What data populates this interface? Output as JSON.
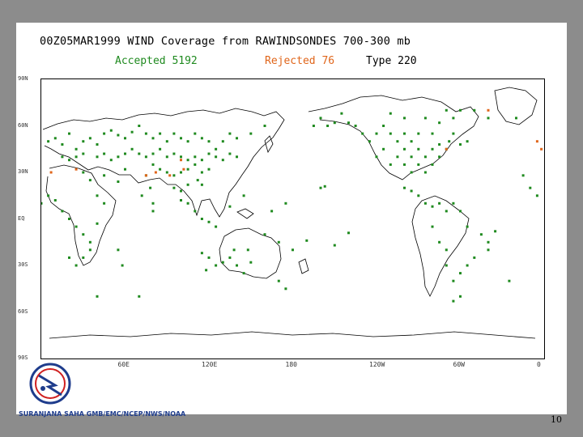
{
  "header": {
    "title": "00Z05MAR1999 WIND Coverage from RAWINDSONDES 700-300 mb",
    "accepted_label": "Accepted 5192",
    "rejected_label": "Rejected 76",
    "type_label": "Type 220"
  },
  "axes": {
    "lat_labels": [
      "90N",
      "60N",
      "30N",
      "EQ",
      "30S",
      "60S",
      "90S"
    ],
    "lon_labels": [
      "60E",
      "120E",
      "180",
      "120W",
      "60W",
      "0"
    ]
  },
  "credit": "SURANJANA SAHA GMB/EMC/NCEP/NWS/NOAA",
  "logo_text": "NATIONAL WEATHER SERVICE",
  "page_number": "10",
  "colors": {
    "accepted": "#1f8a1f",
    "rejected": "#e0651a",
    "background": "#8c8c8c"
  },
  "observations": {
    "accepted": [
      [
        5,
        50
      ],
      [
        10,
        52
      ],
      [
        15,
        48
      ],
      [
        20,
        55
      ],
      [
        25,
        45
      ],
      [
        30,
        50
      ],
      [
        35,
        52
      ],
      [
        40,
        48
      ],
      [
        45,
        55
      ],
      [
        50,
        57
      ],
      [
        55,
        54
      ],
      [
        60,
        52
      ],
      [
        65,
        56
      ],
      [
        70,
        60
      ],
      [
        75,
        55
      ],
      [
        80,
        52
      ],
      [
        85,
        55
      ],
      [
        90,
        50
      ],
      [
        95,
        55
      ],
      [
        100,
        52
      ],
      [
        105,
        50
      ],
      [
        110,
        55
      ],
      [
        115,
        52
      ],
      [
        120,
        50
      ],
      [
        125,
        45
      ],
      [
        130,
        50
      ],
      [
        135,
        55
      ],
      [
        140,
        52
      ],
      [
        150,
        55
      ],
      [
        160,
        60
      ],
      [
        15,
        40
      ],
      [
        20,
        38
      ],
      [
        25,
        40
      ],
      [
        30,
        42
      ],
      [
        40,
        40
      ],
      [
        45,
        42
      ],
      [
        50,
        38
      ],
      [
        55,
        40
      ],
      [
        60,
        42
      ],
      [
        65,
        45
      ],
      [
        70,
        42
      ],
      [
        75,
        40
      ],
      [
        80,
        42
      ],
      [
        85,
        45
      ],
      [
        90,
        40
      ],
      [
        95,
        42
      ],
      [
        100,
        40
      ],
      [
        105,
        38
      ],
      [
        110,
        40
      ],
      [
        115,
        38
      ],
      [
        120,
        42
      ],
      [
        125,
        40
      ],
      [
        130,
        38
      ],
      [
        135,
        42
      ],
      [
        140,
        40
      ],
      [
        80,
        35
      ],
      [
        85,
        32
      ],
      [
        90,
        30
      ],
      [
        95,
        28
      ],
      [
        100,
        30
      ],
      [
        105,
        32
      ],
      [
        110,
        35
      ],
      [
        115,
        30
      ],
      [
        120,
        32
      ],
      [
        112,
        25
      ],
      [
        115,
        22
      ],
      [
        105,
        22
      ],
      [
        100,
        18
      ],
      [
        95,
        20
      ],
      [
        100,
        12
      ],
      [
        105,
        10
      ],
      [
        110,
        5
      ],
      [
        115,
        0
      ],
      [
        120,
        -2
      ],
      [
        125,
        -5
      ],
      [
        30,
        30
      ],
      [
        35,
        25
      ],
      [
        45,
        28
      ],
      [
        55,
        24
      ],
      [
        60,
        32
      ],
      [
        75,
        28
      ],
      [
        78,
        20
      ],
      [
        72,
        15
      ],
      [
        80,
        10
      ],
      [
        80,
        5
      ],
      [
        115,
        -22
      ],
      [
        120,
        -25
      ],
      [
        125,
        -30
      ],
      [
        130,
        -28
      ],
      [
        135,
        -25
      ],
      [
        140,
        -30
      ],
      [
        145,
        -35
      ],
      [
        150,
        -28
      ],
      [
        138,
        -20
      ],
      [
        148,
        -20
      ],
      [
        118,
        -33
      ],
      [
        170,
        -40
      ],
      [
        175,
        -45
      ],
      [
        160,
        -10
      ],
      [
        170,
        -15
      ],
      [
        180,
        -20
      ],
      [
        -170,
        -14
      ],
      [
        -150,
        -17
      ],
      [
        -140,
        -9
      ],
      [
        -160,
        20
      ],
      [
        -157,
        21
      ],
      [
        175,
        10
      ],
      [
        165,
        5
      ],
      [
        145,
        15
      ],
      [
        135,
        8
      ],
      [
        10,
        12
      ],
      [
        15,
        5
      ],
      [
        20,
        0
      ],
      [
        25,
        -5
      ],
      [
        30,
        -10
      ],
      [
        35,
        -15
      ],
      [
        30,
        -25
      ],
      [
        25,
        -30
      ],
      [
        20,
        -25
      ],
      [
        35,
        -20
      ],
      [
        40,
        -3
      ],
      [
        45,
        10
      ],
      [
        5,
        15
      ],
      [
        0,
        10
      ],
      [
        -5,
        15
      ],
      [
        -10,
        20
      ],
      [
        -15,
        28
      ],
      [
        40,
        15
      ],
      [
        55,
        -20
      ],
      [
        58,
        -30
      ],
      [
        40,
        -50
      ],
      [
        70,
        -50
      ],
      [
        -20,
        65
      ],
      [
        -40,
        65
      ],
      [
        -50,
        70
      ],
      [
        -70,
        45
      ],
      [
        -75,
        40
      ],
      [
        -80,
        35
      ],
      [
        -85,
        30
      ],
      [
        -90,
        35
      ],
      [
        -95,
        40
      ],
      [
        -100,
        45
      ],
      [
        -105,
        40
      ],
      [
        -110,
        35
      ],
      [
        -115,
        45
      ],
      [
        -120,
        40
      ],
      [
        -125,
        50
      ],
      [
        -130,
        55
      ],
      [
        -80,
        45
      ],
      [
        -85,
        40
      ],
      [
        -90,
        45
      ],
      [
        -95,
        30
      ],
      [
        -100,
        35
      ],
      [
        -105,
        50
      ],
      [
        -110,
        55
      ],
      [
        -115,
        60
      ],
      [
        -120,
        55
      ],
      [
        -135,
        60
      ],
      [
        -140,
        62
      ],
      [
        -150,
        62
      ],
      [
        -155,
        60
      ],
      [
        -160,
        65
      ],
      [
        -165,
        60
      ],
      [
        -145,
        68
      ],
      [
        -90,
        55
      ],
      [
        -80,
        55
      ],
      [
        -75,
        48
      ],
      [
        -68,
        50
      ],
      [
        -65,
        55
      ],
      [
        -60,
        48
      ],
      [
        -55,
        50
      ],
      [
        -95,
        50
      ],
      [
        -100,
        55
      ],
      [
        -100,
        65
      ],
      [
        -110,
        68
      ],
      [
        -85,
        65
      ],
      [
        -75,
        62
      ],
      [
        -65,
        65
      ],
      [
        -70,
        70
      ],
      [
        -60,
        70
      ],
      [
        -100,
        20
      ],
      [
        -95,
        18
      ],
      [
        -90,
        15
      ],
      [
        -85,
        10
      ],
      [
        -80,
        8
      ],
      [
        -75,
        10
      ],
      [
        -70,
        5
      ],
      [
        -65,
        10
      ],
      [
        -60,
        5
      ],
      [
        -55,
        -5
      ],
      [
        -45,
        -10
      ],
      [
        -40,
        -15
      ],
      [
        -50,
        -25
      ],
      [
        -55,
        -30
      ],
      [
        -60,
        -35
      ],
      [
        -65,
        -40
      ],
      [
        -70,
        -30
      ],
      [
        -75,
        -15
      ],
      [
        -80,
        -5
      ],
      [
        -70,
        -20
      ],
      [
        -35,
        -8
      ],
      [
        -60,
        -50
      ],
      [
        -65,
        -53
      ],
      [
        -40,
        -20
      ],
      [
        -25,
        -40
      ]
    ],
    "rejected": [
      [
        7,
        30
      ],
      [
        25,
        32
      ],
      [
        75,
        28
      ],
      [
        82,
        30
      ],
      [
        92,
        28
      ],
      [
        100,
        38
      ],
      [
        102,
        32
      ],
      [
        -40,
        70
      ],
      [
        -5,
        50
      ],
      [
        -2,
        45
      ],
      [
        -70,
        45
      ]
    ]
  }
}
